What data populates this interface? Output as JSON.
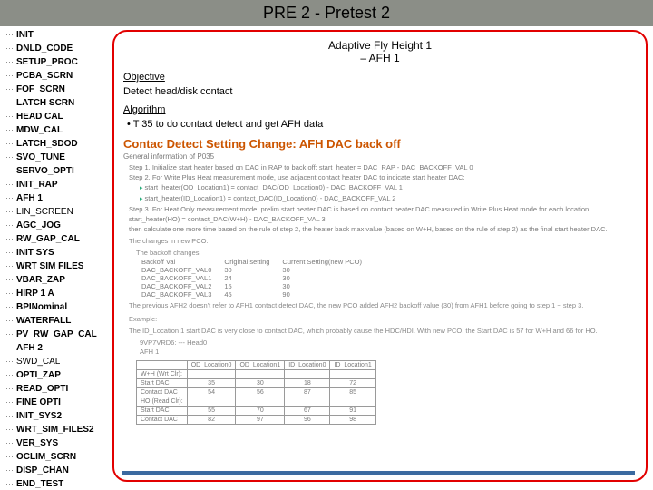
{
  "title": "PRE 2 - Pretest 2",
  "sidebar": {
    "items": [
      {
        "label": "INIT",
        "bold": true
      },
      {
        "label": "DNLD_CODE",
        "bold": true
      },
      {
        "label": "SETUP_PROC",
        "bold": true
      },
      {
        "label": "PCBA_SCRN",
        "bold": true
      },
      {
        "label": "FOF_SCRN",
        "bold": true
      },
      {
        "label": "LATCH SCRN",
        "bold": true
      },
      {
        "label": "HEAD CAL",
        "bold": true
      },
      {
        "label": "MDW_CAL",
        "bold": true
      },
      {
        "label": "LATCH_SDOD",
        "bold": true
      },
      {
        "label": "SVO_TUNE",
        "bold": true
      },
      {
        "label": "SERVO_OPTI",
        "bold": true
      },
      {
        "label": "INIT_RAP",
        "bold": true
      },
      {
        "label": "AFH 1",
        "bold": true
      },
      {
        "label": "LIN_SCREEN",
        "bold": false
      },
      {
        "label": "AGC_JOG",
        "bold": true
      },
      {
        "label": "RW_GAP_CAL",
        "bold": true
      },
      {
        "label": "INIT SYS",
        "bold": true
      },
      {
        "label": "WRT SIM FILES",
        "bold": true
      },
      {
        "label": "VBAR_ZAP",
        "bold": true
      },
      {
        "label": "HIRP 1 A",
        "bold": true
      },
      {
        "label": "BPINominal",
        "bold": true
      },
      {
        "label": "WATERFALL",
        "bold": true
      },
      {
        "label": "PV_RW_GAP_CAL",
        "bold": true
      },
      {
        "label": "AFH 2",
        "bold": true
      },
      {
        "label": "SWD_CAL",
        "bold": false
      },
      {
        "label": "OPTI_ZAP",
        "bold": true
      },
      {
        "label": "READ_OPTI",
        "bold": true
      },
      {
        "label": "FINE OPTI",
        "bold": true
      },
      {
        "label": "INIT_SYS2",
        "bold": true
      },
      {
        "label": "WRT_SIM_FILES2",
        "bold": true
      },
      {
        "label": "VER_SYS",
        "bold": true
      },
      {
        "label": "OCLIM_SCRN",
        "bold": true
      },
      {
        "label": "DISP_CHAN",
        "bold": true
      },
      {
        "label": "END_TEST",
        "bold": true
      }
    ]
  },
  "panel": {
    "heading_line1": "Adaptive Fly Height 1",
    "heading_line2": "– AFH 1",
    "objective_label": "Objective",
    "objective_text": "Detect head/disk contact",
    "algorithm_label": "Algorithm",
    "algorithm_bullet": "T 35 to do contact detect and get AFH data"
  },
  "inner": {
    "title": "Contac Detect Setting Change: AFH DAC back off",
    "general_label": "General information of P035",
    "steps": [
      "Step 1. Initialize start heater based on DAC in RAP to back off: start_heater = DAC_RAP - DAC_BACKOFF_VAL 0",
      "Step 2. For Write Plus Heat measurement mode, use adjacent contact heater DAC to indicate start heater DAC:"
    ],
    "substeps": [
      "start_heater(OD_Location1) = contact_DAC(OD_Location0) - DAC_BACKOFF_VAL 1",
      "start_heater(ID_Location1) = contact_DAC(ID_Location0) - DAC_BACKOFF_VAL 2"
    ],
    "steps2": [
      "Step 3. For Heat Only measurement mode, prelim start heater DAC is based on contact heater DAC measured in Write Plus Heat mode for each location.",
      "start_heater(HO) = contact_DAC(W+H) - DAC_BACKOFF_VAL 3",
      "then calculate one more time based on the rule of step 2, the heater back max value (based on W+H, based on the rule of step 2) as the final start heater DAC."
    ],
    "changes_label": "The changes in new PCO:",
    "backoff_label": "The backoff changes:",
    "backoff_header": [
      "Backoff Val",
      "Original setting",
      "Current Setting(new PCO)"
    ],
    "backoff_rows": [
      [
        "DAC_BACKOFF_VAL0",
        "30",
        "30"
      ],
      [
        "DAC_BACKOFF_VAL1",
        "24",
        "30"
      ],
      [
        "DAC_BACKOFF_VAL2",
        "15",
        "30"
      ],
      [
        "DAC_BACKOFF_VAL3",
        "45",
        "90"
      ]
    ],
    "prev_note": "The previous AFH2 doesn't refer to AFH1 contact detect DAC, the new PCO added AFH2 backoff value (30) from AFH1 before going to step 1 ~ step 3.",
    "example_label": "Example:",
    "example_text": "The ID_Location 1 start DAC is very close to contact DAC, which probably cause the HDC/HDI. With new PCO, the Start DAC is 57 for W+H and 66 for HO.",
    "example_sub": "9VP7VRD6: --- Head0\nAFH 1",
    "table_header": [
      "",
      "OD_Location0",
      "OD_Location1",
      "ID_Location0",
      "ID_Location1"
    ],
    "table_rows": [
      [
        "W+H (Wrt Clr):",
        "",
        "",
        "",
        ""
      ],
      [
        "Start DAC",
        "35",
        "30",
        "18",
        "72"
      ],
      [
        "Contact DAC",
        "54",
        "56",
        "87",
        "85"
      ],
      [
        "HO (Read Clr):",
        "",
        "",
        "",
        ""
      ],
      [
        "Start DAC",
        "55",
        "70",
        "67",
        "91"
      ],
      [
        "Contact DAC",
        "82",
        "97",
        "96",
        "98"
      ]
    ]
  },
  "colors": {
    "titlebar_bg": "#8b8e87",
    "panel_border": "#e20000",
    "inner_title": "#cc5500",
    "footer_bar": "#3b6aa0",
    "muted_text": "#7a7a7a"
  }
}
